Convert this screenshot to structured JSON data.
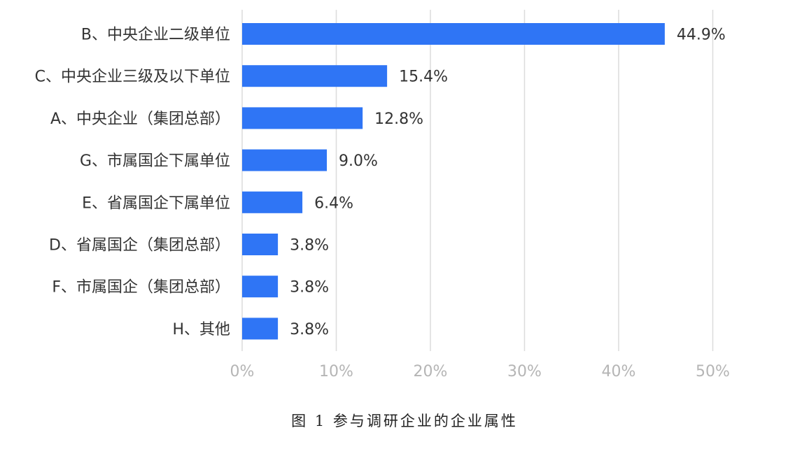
{
  "caption": "图 1 参与调研企业的企业属性",
  "chart_data": {
    "type": "bar",
    "orientation": "horizontal",
    "title": "",
    "xlabel": "",
    "ylabel": "",
    "xlim": [
      0,
      50
    ],
    "x_ticks": [
      "0%",
      "10%",
      "20%",
      "30%",
      "40%",
      "50%"
    ],
    "grid": "vertical",
    "bar_color": "#2f75f5",
    "categories": [
      "B、中央企业二级单位",
      "C、中央企业三级及以下单位",
      "A、中央企业（集团总部）",
      "G、市属国企下属单位",
      "E、省属国企下属单位",
      "D、省属国企（集团总部）",
      "F、市属国企（集团总部）",
      "H、其他"
    ],
    "values": [
      44.9,
      15.4,
      12.8,
      9.0,
      6.4,
      3.8,
      3.8,
      3.8
    ],
    "value_labels": [
      "44.9%",
      "15.4%",
      "12.8%",
      "9.0%",
      "6.4%",
      "3.8%",
      "3.8%",
      "3.8%"
    ]
  }
}
